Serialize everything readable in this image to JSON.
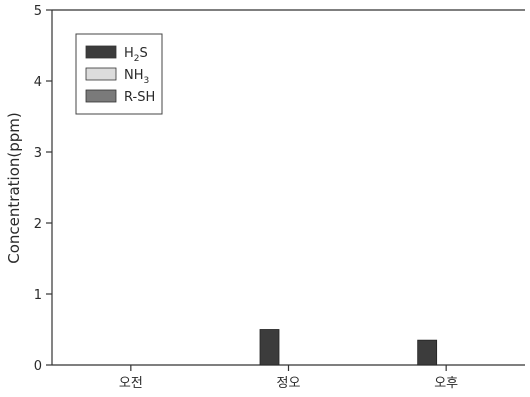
{
  "chart_data": {
    "type": "bar",
    "categories": [
      "오전",
      "정오",
      "오후"
    ],
    "series": [
      {
        "name": "H2S",
        "label_main": "H",
        "label_sub": "2",
        "label_tail": "S",
        "color": "#3c3c3c",
        "values": [
          0.0,
          0.5,
          0.35
        ]
      },
      {
        "name": "NH3",
        "label_main": "NH",
        "label_sub": "3",
        "label_tail": "",
        "color": "#dcdcdc",
        "values": [
          0.0,
          0.0,
          0.0
        ]
      },
      {
        "name": "R-SH",
        "label_main": "R-SH",
        "label_sub": "",
        "label_tail": "",
        "color": "#7a7a7a",
        "values": [
          0.0,
          0.0,
          0.0
        ]
      }
    ],
    "ylabel": "Concentration(ppm)",
    "ylim": [
      0,
      5
    ],
    "yticks": [
      0,
      1,
      2,
      3,
      4,
      5
    ],
    "legend": "top-left",
    "grid": false
  }
}
